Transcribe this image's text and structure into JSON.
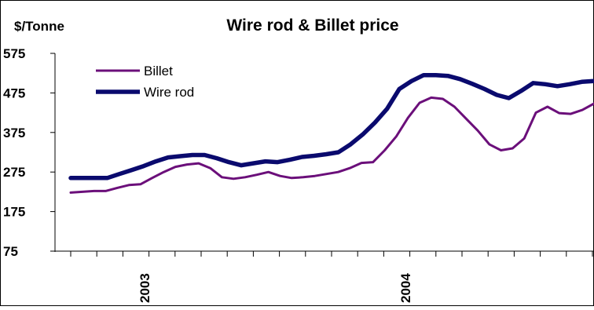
{
  "chart_data": {
    "type": "line",
    "title": "Wire rod & Billet price",
    "ylabel": "$/Tonne",
    "ylim": [
      75,
      575
    ],
    "yticks": [
      75,
      175,
      275,
      375,
      475,
      575
    ],
    "year_labels": [
      "2003",
      "2004"
    ],
    "legend_position": "top-left",
    "grid": false,
    "series": [
      {
        "name": "Billet",
        "color": "#6B0F7A",
        "values": [
          223,
          225,
          227,
          227,
          235,
          242,
          244,
          260,
          275,
          288,
          294,
          297,
          285,
          262,
          258,
          262,
          268,
          275,
          265,
          260,
          262,
          265,
          270,
          275,
          285,
          298,
          300,
          330,
          365,
          412,
          450,
          463,
          460,
          440,
          410,
          380,
          345,
          330,
          335,
          360,
          425,
          440,
          424,
          422,
          432,
          448
        ]
      },
      {
        "name": "Wire rod",
        "color": "#0A0A6E",
        "values": [
          260,
          260,
          260,
          260,
          270,
          280,
          290,
          302,
          312,
          315,
          318,
          318,
          310,
          300,
          292,
          297,
          302,
          300,
          306,
          313,
          316,
          320,
          325,
          345,
          370,
          400,
          435,
          485,
          505,
          520,
          520,
          518,
          510,
          498,
          485,
          470,
          462,
          480,
          500,
          497,
          492,
          497,
          503,
          505
        ]
      }
    ]
  }
}
